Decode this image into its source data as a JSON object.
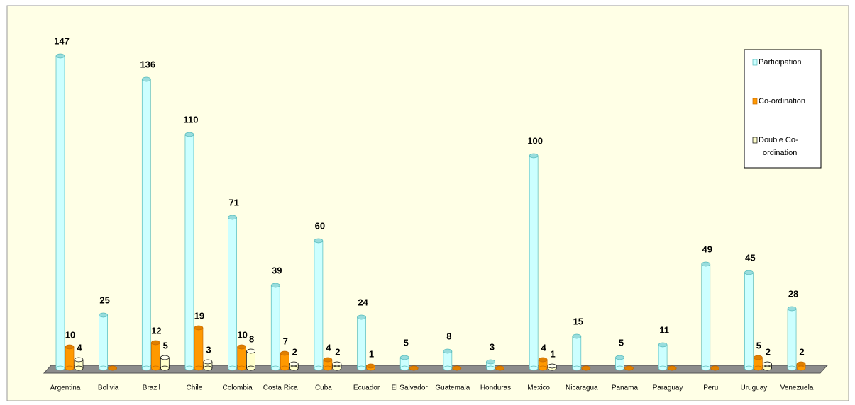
{
  "chart_data": {
    "type": "bar",
    "categories": [
      "Argentina",
      "Bolivia",
      "Brazil",
      "Chile",
      "Colombia",
      "Costa Rica",
      "Cuba",
      "Ecuador",
      "El Salvador",
      "Guatemala",
      "Honduras",
      "Mexico",
      "Nicaragua",
      "Panama",
      "Paraguay",
      "Peru",
      "Uruguay",
      "Venezuela"
    ],
    "series": [
      {
        "name": "Participation",
        "color": "#ccffff",
        "values": [
          147,
          25,
          136,
          110,
          71,
          39,
          60,
          24,
          5,
          8,
          3,
          100,
          15,
          5,
          11,
          49,
          45,
          28
        ]
      },
      {
        "name": "Co-ordination",
        "color": "#ff9900",
        "values": [
          10,
          0,
          12,
          19,
          10,
          7,
          4,
          1,
          0,
          0,
          0,
          4,
          0,
          0,
          0,
          0,
          5,
          2
        ]
      },
      {
        "name": "Double Co-ordination",
        "color": "#ffffcc",
        "values": [
          4,
          null,
          5,
          3,
          8,
          2,
          2,
          null,
          null,
          null,
          null,
          1,
          null,
          null,
          null,
          null,
          2,
          null
        ]
      }
    ],
    "legend": "right"
  }
}
